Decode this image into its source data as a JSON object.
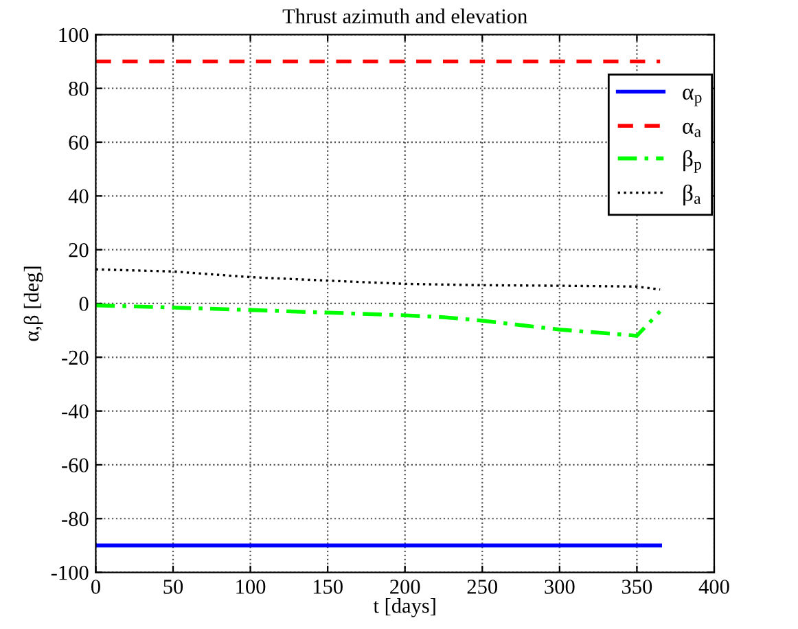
{
  "chart_data": {
    "type": "line",
    "title": "Thrust azimuth and elevation",
    "xlabel": "t [days]",
    "ylabel": "α,β [deg]",
    "xlim": [
      0,
      400
    ],
    "xticks": [
      0,
      50,
      100,
      150,
      200,
      250,
      300,
      350,
      400
    ],
    "ylim": [
      -100,
      100
    ],
    "yticks": [
      -100,
      -80,
      -60,
      -40,
      -20,
      0,
      20,
      40,
      60,
      80,
      100
    ],
    "grid": true,
    "legend": "top right",
    "series": [
      {
        "name": "α$_{p}$",
        "color": "#0000ff",
        "line_style": "solid",
        "x": [
          0,
          365
        ],
        "values": [
          -90,
          -90
        ]
      },
      {
        "name": "α$_{a}$",
        "color": "#ff0000",
        "line_style": "dashed",
        "x": [
          0,
          365
        ],
        "values": [
          90,
          90
        ]
      },
      {
        "name": "β$_{p}$",
        "color": "#00ff00",
        "line_style": "dashdot",
        "x": [
          0,
          50,
          100,
          150,
          200,
          225,
          250,
          300,
          350,
          365
        ],
        "values": [
          -0.7,
          -1.5,
          -2.4,
          -3.4,
          -4.4,
          -5.1,
          -6.4,
          -9.7,
          -12.0,
          -2.9
        ]
      },
      {
        "name": "β$_{a}$",
        "color": "#000000",
        "line_style": "dotted",
        "x": [
          0,
          50,
          100,
          150,
          200,
          250,
          300,
          350,
          365
        ],
        "values": [
          12.7,
          11.9,
          9.8,
          8.5,
          7.3,
          6.8,
          6.6,
          6.3,
          5.2
        ]
      }
    ]
  }
}
